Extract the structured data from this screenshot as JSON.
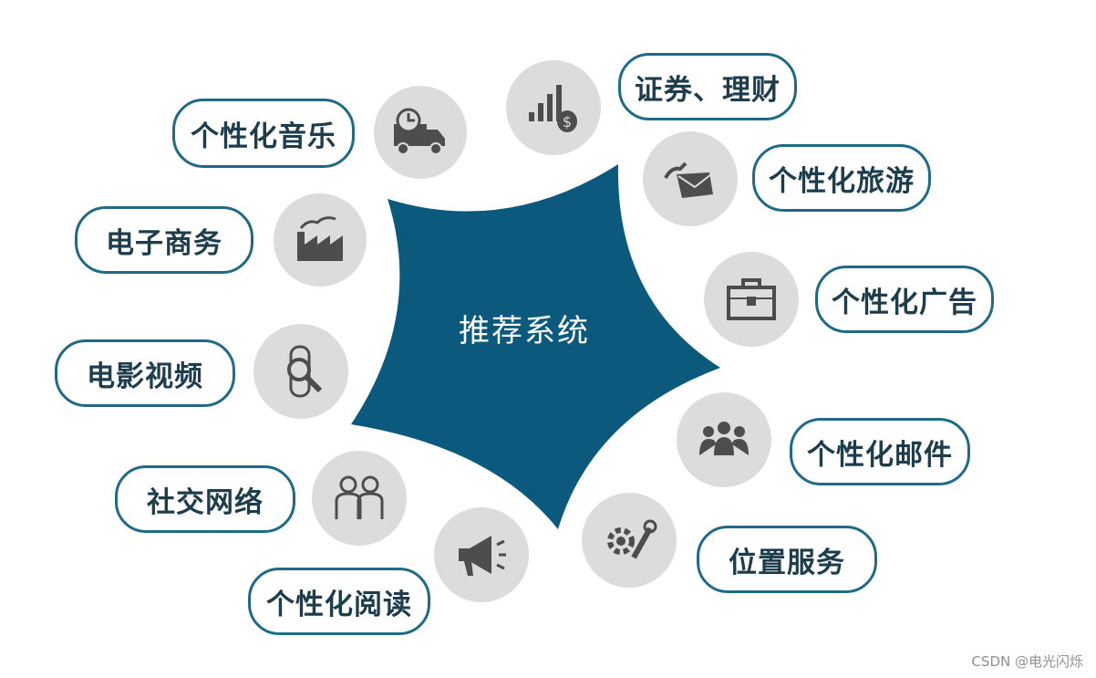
{
  "center": {
    "label": "推荐系统",
    "color": "#0b5a7d"
  },
  "colors": {
    "pill_border": "#1f6b86",
    "icon_bubble": "#dcdcdc",
    "icon_fill": "#4d4d4d"
  },
  "categories": [
    {
      "label": "个性化音乐",
      "icon": "truck-clock-icon"
    },
    {
      "label": "证券、理财",
      "icon": "money-bars-icon"
    },
    {
      "label": "个性化旅游",
      "icon": "hand-envelope-icon"
    },
    {
      "label": "电子商务",
      "icon": "factory-icon"
    },
    {
      "label": "个性化广告",
      "icon": "briefcase-icon"
    },
    {
      "label": "电影视频",
      "icon": "magnifier-tube-icon"
    },
    {
      "label": "个性化邮件",
      "icon": "people-group-icon"
    },
    {
      "label": "社交网络",
      "icon": "two-people-icon"
    },
    {
      "label": "位置服务",
      "icon": "gear-wrench-icon"
    },
    {
      "label": "个性化阅读",
      "icon": "megaphone-icon"
    }
  ],
  "watermark": "CSDN @电光闪烁"
}
